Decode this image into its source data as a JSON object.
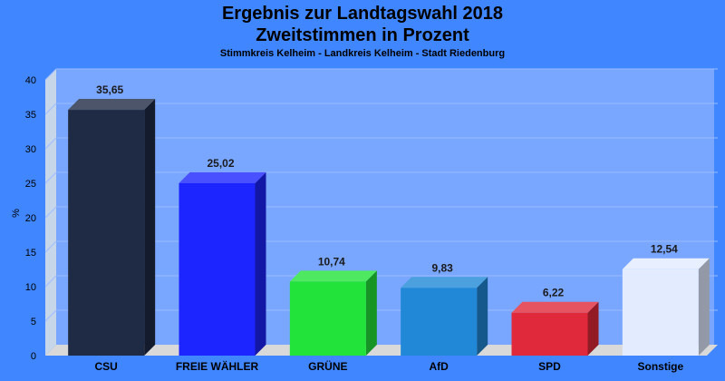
{
  "chart_data": {
    "type": "bar",
    "title": "Ergebnis zur Landtagswahl 2018",
    "subtitle": "Zweitstimmen in Prozent",
    "subsubtitle": "Stimmkreis Kelheim - Landkreis Kelheim - Stadt Riedenburg",
    "ylabel": "%",
    "xlabel": "",
    "ylim": [
      0,
      40
    ],
    "yticks": [
      0,
      5,
      10,
      15,
      20,
      25,
      30,
      35,
      40
    ],
    "categories": [
      "CSU",
      "FREIE WÄHLER",
      "GRÜNE",
      "AfD",
      "SPD",
      "Sonstige"
    ],
    "values": [
      35.65,
      25.02,
      10.74,
      9.83,
      6.22,
      12.54
    ],
    "value_labels": [
      "35,65",
      "25,02",
      "10,74",
      "9,83",
      "6,22",
      "12,54"
    ],
    "colors": [
      "#1f2a44",
      "#1c24ff",
      "#22e33a",
      "#2088d6",
      "#e0293a",
      "#e2ebff"
    ],
    "grid": true,
    "background_color": "#3f86ff",
    "plot_area_color": "#79a6ff"
  }
}
